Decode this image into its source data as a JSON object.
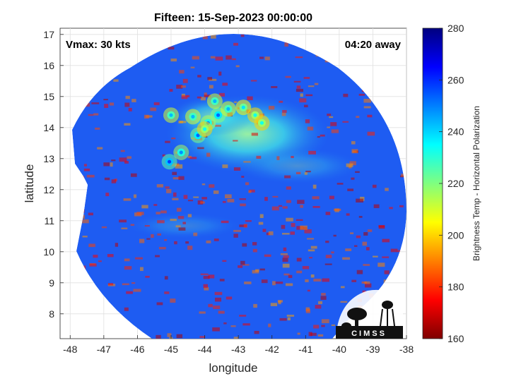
{
  "chart_data": {
    "type": "heatmap",
    "title": "Fifteen: 15-Sep-2023 00:00:00",
    "xlabel": "longitude",
    "ylabel": "latitude",
    "xlim": [
      -48.3,
      -38
    ],
    "ylim": [
      7.2,
      17.2
    ],
    "xticks": [
      "-48",
      "-47",
      "-46",
      "-45",
      "-44",
      "-43",
      "-42",
      "-41",
      "-40",
      "-39",
      "-38"
    ],
    "yticks": [
      "8",
      "9",
      "10",
      "11",
      "12",
      "13",
      "14",
      "15",
      "16",
      "17"
    ],
    "grid": true,
    "annotations": {
      "top_left": "Vmax: 30 kts",
      "top_right": "04:20 away"
    },
    "colorbar": {
      "label": "Brightness Temp - Horizontal Polarization",
      "range": [
        160,
        280
      ],
      "ticks": [
        "160",
        "180",
        "200",
        "220",
        "240",
        "260",
        "280"
      ],
      "colormap": "jet"
    },
    "cold_cells": [
      {
        "lon": -44.2,
        "lat": 13.75,
        "tb": 195
      },
      {
        "lon": -45.05,
        "lat": 12.9,
        "tb": 190
      },
      {
        "lon": -44.7,
        "lat": 13.2,
        "tb": 200
      },
      {
        "lon": -43.9,
        "lat": 14.15,
        "tb": 200
      },
      {
        "lon": -43.6,
        "lat": 14.4,
        "tb": 195
      },
      {
        "lon": -44.35,
        "lat": 14.35,
        "tb": 205
      },
      {
        "lon": -43.3,
        "lat": 14.6,
        "tb": 205
      },
      {
        "lon": -42.85,
        "lat": 14.65,
        "tb": 210
      },
      {
        "lon": -42.5,
        "lat": 14.4,
        "tb": 215
      },
      {
        "lon": -43.7,
        "lat": 14.85,
        "tb": 205
      },
      {
        "lon": -42.3,
        "lat": 14.15,
        "tb": 215
      },
      {
        "lon": -44.0,
        "lat": 13.95,
        "tb": 215
      },
      {
        "lon": -45.0,
        "lat": 14.4,
        "tb": 205
      }
    ],
    "cool_region": {
      "lon": -43.2,
      "lat": 13.9,
      "tb": 235
    },
    "background_tb": 262
  },
  "logo": {
    "text": "CIMSS"
  }
}
